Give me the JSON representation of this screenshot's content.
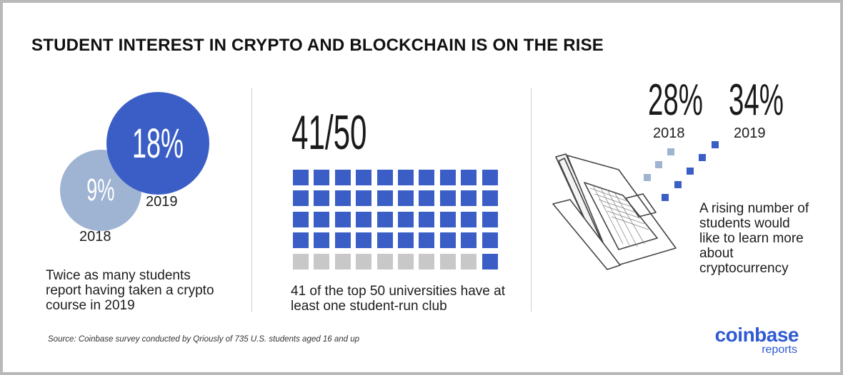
{
  "title": "STUDENT INTEREST IN CRYPTO AND BLOCKCHAIN IS ON THE RISE",
  "panel_course": {
    "value_2018": "9%",
    "label_2018": "2018",
    "value_2019": "18%",
    "label_2019": "2019",
    "caption": "Twice as many students report having taken a crypto course in 2019"
  },
  "panel_clubs": {
    "stat": "41/50",
    "caption": "41 of the top 50 universities have at least one student-run club"
  },
  "panel_learn": {
    "value_2018": "28%",
    "label_2018": "2018",
    "value_2019": "34%",
    "label_2019": "2019",
    "caption": "A rising number of students would like to learn more about cryptocurrency"
  },
  "source": "Source: Coinbase survey conducted by Qriously of 735 U.S. students aged 16 and up",
  "logo": {
    "word": "coinbase",
    "sub": "reports"
  },
  "colors": {
    "dark_blue": "#3a5ec6",
    "light_blue": "#9fb3d3",
    "gray": "#c8c8c8",
    "logo_blue": "#2f5bd2"
  },
  "chart_data": [
    {
      "type": "bubble",
      "title": "",
      "categories": [
        "2018",
        "2019"
      ],
      "values": [
        9,
        18
      ],
      "unit": "%"
    },
    {
      "type": "waffle",
      "title": "",
      "filled": 41,
      "total": 50
    },
    {
      "type": "pictogram",
      "title": "",
      "categories": [
        "2018",
        "2019"
      ],
      "values": [
        28,
        34
      ],
      "unit": "%"
    }
  ]
}
